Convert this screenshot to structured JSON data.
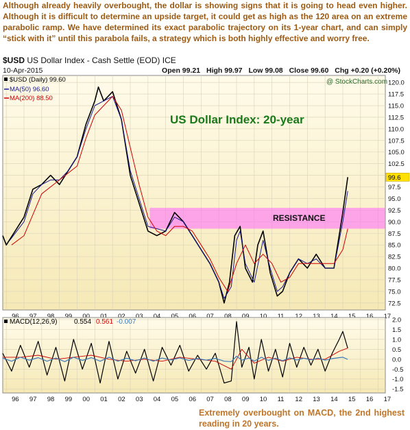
{
  "intro_text": "Although already heavily overbought, the dollar is showing signs that it is going to head even higher. Although it  is difficult to determine an upside target, it could get as high as the 120 area on an extreme parabolic ramp. We have determined its exact parabolic trajectory on its 1-year chart, and can simply “stick with it” until this parabola fails, a strategy which is both highly effective and worry free.",
  "header": {
    "symbol": "$USD",
    "name": "US Dollar Index - Cash Settle (EOD)",
    "exchange": "ICE",
    "watermark": "@ StockCharts.com",
    "date": "10-Apr-2015",
    "open": "Open 99.21",
    "high": "High 99.97",
    "low": "Low 99.08",
    "close": "Close 99.60",
    "chg": "Chg +0.20 (+0.20%)"
  },
  "legend": {
    "price": "$USD (Daily) 99.60",
    "ma50": "MA(50) 96.60",
    "ma200": "MA(200) 88.50"
  },
  "macd_legend": {
    "label": "MACD(12,26,9)",
    "v1": "0.554",
    "v2": "0.561",
    "v3": "-0.007"
  },
  "footnote": "Extremely overbought on MACD, the 2nd highest reading in 20 years.",
  "colors": {
    "price": "#000000",
    "ma50": "#1a1a8c",
    "ma200": "#cc0000",
    "macd_hist": "#3a7ab8",
    "resistance": "#ff66ff",
    "title": "#1a7a1a",
    "bg_top": "#fffbea",
    "bg_bottom": "#f6e9b6",
    "current_marker": "#ffe000"
  },
  "chart_data": [
    {
      "type": "line",
      "title": "US Dollar Index: 20-year",
      "annotation": "RESISTANCE",
      "x_tick_labels": [
        "96",
        "97",
        "98",
        "99",
        "00",
        "01",
        "02",
        "03",
        "04",
        "05",
        "06",
        "07",
        "08",
        "09",
        "10",
        "11",
        "12",
        "13",
        "14",
        "15",
        "16",
        "17"
      ],
      "y_tick_labels": [
        "72.5",
        "75.0",
        "77.5",
        "80.0",
        "82.5",
        "85.0",
        "87.5",
        "90.0",
        "92.5",
        "95.0",
        "97.5",
        "100.0",
        "102.5",
        "105.0",
        "107.5",
        "110.0",
        "112.5",
        "115.0",
        "117.5",
        "120.0"
      ],
      "ylim": [
        71,
        121.5
      ],
      "xlim": [
        1995.8,
        2017.4
      ],
      "resistance_band": [
        88.5,
        93.0
      ],
      "current_value": 99.6,
      "series": [
        {
          "name": "$USD",
          "x": [
            1995.8,
            1996.0,
            1996.5,
            1997.0,
            1997.5,
            1998.0,
            1998.5,
            1999.0,
            1999.5,
            2000.0,
            2000.5,
            2001.0,
            2001.2,
            2001.5,
            2002.0,
            2002.5,
            2003.0,
            2003.5,
            2004.0,
            2004.5,
            2005.0,
            2005.5,
            2006.0,
            2006.5,
            2007.0,
            2007.5,
            2008.0,
            2008.3,
            2008.6,
            2008.9,
            2009.2,
            2009.5,
            2009.9,
            2010.2,
            2010.5,
            2010.9,
            2011.3,
            2011.6,
            2012.0,
            2012.5,
            2013.0,
            2013.5,
            2014.0,
            2014.5,
            2015.0,
            2015.28
          ],
          "values": [
            87,
            85,
            88,
            91,
            97,
            98,
            100,
            98,
            101,
            104,
            111,
            116,
            119,
            116,
            118,
            112,
            100,
            94,
            88,
            87,
            88,
            92,
            90,
            87,
            84,
            81,
            77,
            72.5,
            77,
            87,
            89,
            80,
            77,
            85,
            88,
            79,
            74,
            75,
            79,
            82,
            80,
            83,
            80,
            80,
            92,
            99.6
          ]
        },
        {
          "name": "MA(50)",
          "x": [
            1996.2,
            1997.0,
            1997.5,
            1998.0,
            1998.5,
            1999.0,
            1999.5,
            2000.0,
            2000.5,
            2001.0,
            2001.5,
            2002.0,
            2002.5,
            2003.0,
            2003.5,
            2004.0,
            2005.0,
            2005.5,
            2006.0,
            2006.5,
            2007.0,
            2007.5,
            2008.0,
            2008.3,
            2008.7,
            2009.0,
            2009.2,
            2009.5,
            2010.0,
            2010.5,
            2010.9,
            2011.3,
            2011.6,
            2012.0,
            2012.5,
            2013.0,
            2013.5,
            2014.0,
            2014.5,
            2015.0,
            2015.28
          ],
          "values": [
            86,
            90,
            96,
            98,
            99,
            99,
            101,
            104,
            110,
            115,
            116,
            117,
            112,
            101,
            95,
            89,
            88,
            91,
            90,
            87,
            84,
            81,
            77,
            73.5,
            76,
            86,
            88,
            81,
            77,
            86,
            80,
            75,
            76,
            79,
            82,
            81,
            82,
            80,
            80,
            90,
            96.6
          ]
        },
        {
          "name": "MA(200)",
          "x": [
            1996.3,
            1997.0,
            1998.0,
            1999.0,
            2000.0,
            2000.5,
            2001.0,
            2001.5,
            2002.0,
            2002.5,
            2003.0,
            2003.5,
            2004.0,
            2004.5,
            2005.0,
            2005.5,
            2006.0,
            2006.5,
            2007.0,
            2007.5,
            2008.0,
            2008.5,
            2009.0,
            2009.5,
            2010.0,
            2010.5,
            2011.0,
            2011.5,
            2012.0,
            2012.5,
            2013.0,
            2013.5,
            2014.0,
            2014.5,
            2015.0,
            2015.28
          ],
          "values": [
            85,
            87,
            96,
            99,
            102,
            108,
            113,
            115,
            117,
            114,
            106,
            98,
            91,
            88,
            87,
            89,
            89,
            88,
            85,
            82,
            78,
            75,
            81,
            85,
            81,
            83,
            81,
            77,
            78,
            81,
            81,
            81,
            81,
            81,
            84,
            88.5
          ]
        }
      ]
    },
    {
      "type": "line",
      "title": "MACD(12,26,9)",
      "x_tick_labels": [
        "96",
        "97",
        "98",
        "99",
        "00",
        "01",
        "02",
        "03",
        "04",
        "05",
        "06",
        "07",
        "08",
        "09",
        "10",
        "11",
        "12",
        "13",
        "14",
        "15",
        "16",
        "17"
      ],
      "y_tick_labels": [
        "2.0",
        "1.5",
        "1.0",
        "0.5",
        "0.0",
        "-0.5",
        "-1.0",
        "-1.5"
      ],
      "ylim": [
        -1.7,
        2.1
      ],
      "xlim": [
        1995.8,
        2017.4
      ],
      "series": [
        {
          "name": "MACD",
          "x": [
            1995.8,
            1996.3,
            1996.8,
            1997.3,
            1997.8,
            1998.3,
            1998.8,
            1999.3,
            1999.8,
            2000.3,
            2000.8,
            2001.3,
            2001.8,
            2002.3,
            2002.8,
            2003.3,
            2003.8,
            2004.3,
            2004.8,
            2005.3,
            2005.8,
            2006.3,
            2006.8,
            2007.3,
            2007.8,
            2008.3,
            2008.7,
            2009.0,
            2009.3,
            2009.7,
            2010.0,
            2010.4,
            2010.8,
            2011.2,
            2011.6,
            2012.0,
            2012.4,
            2012.8,
            2013.2,
            2013.6,
            2014.0,
            2014.4,
            2014.8,
            2015.0,
            2015.28
          ],
          "values": [
            0.3,
            -0.6,
            0.7,
            -0.4,
            0.9,
            -0.8,
            0.6,
            -1.1,
            1.0,
            -0.5,
            0.8,
            -1.2,
            0.9,
            -1.0,
            0.4,
            -0.7,
            0.5,
            -1.1,
            0.6,
            -0.3,
            0.7,
            -0.6,
            0.2,
            -0.5,
            0.3,
            -1.2,
            -1.1,
            1.9,
            -0.4,
            0.6,
            -1.0,
            1.0,
            -0.6,
            0.5,
            -0.9,
            0.8,
            -0.4,
            0.6,
            -0.3,
            0.5,
            -0.6,
            0.3,
            1.0,
            1.4,
            0.554
          ]
        },
        {
          "name": "Signal",
          "x": [
            1995.8,
            1996.8,
            1997.8,
            1998.8,
            1999.8,
            2000.8,
            2001.8,
            2002.8,
            2003.8,
            2004.8,
            2005.8,
            2006.8,
            2007.8,
            2008.7,
            2009.3,
            2010.0,
            2010.8,
            2011.6,
            2012.4,
            2013.2,
            2014.0,
            2014.8,
            2015.28
          ],
          "values": [
            0.1,
            0.1,
            0.2,
            0.0,
            0.1,
            0.2,
            0.0,
            -0.1,
            0.0,
            -0.1,
            0.1,
            0.0,
            -0.1,
            -0.5,
            0.5,
            -0.2,
            0.1,
            -0.1,
            0.1,
            0.0,
            0.0,
            0.4,
            0.561
          ]
        },
        {
          "name": "Histogram",
          "x": [
            1995.8,
            1996.3,
            1996.8,
            1997.3,
            1997.8,
            1998.3,
            1998.8,
            1999.3,
            1999.8,
            2000.3,
            2000.8,
            2001.3,
            2001.8,
            2002.3,
            2002.8,
            2003.3,
            2003.8,
            2004.3,
            2004.8,
            2005.3,
            2005.8,
            2006.3,
            2006.8,
            2007.3,
            2007.8,
            2008.3,
            2008.7,
            2009.0,
            2009.3,
            2009.7,
            2010.0,
            2010.4,
            2010.8,
            2011.2,
            2011.6,
            2012.0,
            2012.4,
            2012.8,
            2013.2,
            2013.6,
            2014.0,
            2014.4,
            2014.8,
            2015.0,
            2015.28
          ],
          "values": [
            0.05,
            -0.1,
            0.1,
            -0.05,
            0.08,
            -0.1,
            0.06,
            -0.12,
            0.1,
            -0.06,
            0.08,
            -0.1,
            0.1,
            -0.1,
            0.05,
            -0.08,
            0.06,
            -0.1,
            0.06,
            -0.04,
            0.07,
            -0.06,
            0.03,
            -0.05,
            0.04,
            -0.1,
            -0.12,
            0.15,
            -0.05,
            0.06,
            -0.1,
            0.1,
            -0.06,
            0.05,
            -0.08,
            0.07,
            -0.04,
            0.05,
            -0.03,
            0.05,
            -0.05,
            0.03,
            0.08,
            0.1,
            -0.007
          ]
        }
      ]
    }
  ]
}
